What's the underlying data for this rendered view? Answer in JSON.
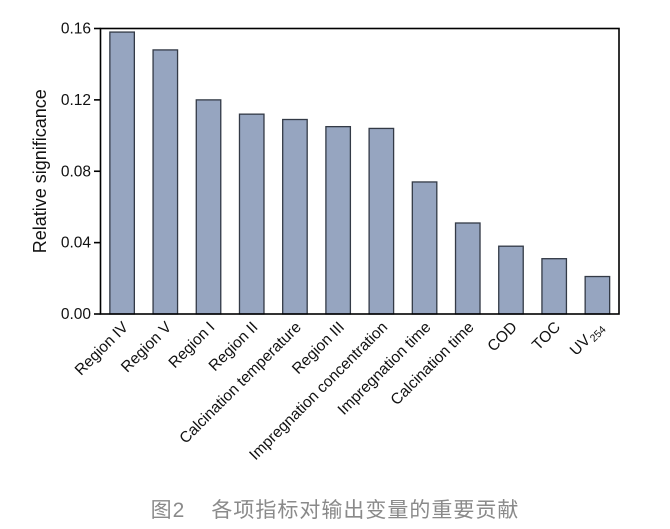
{
  "figure_caption": {
    "prefix": "图2",
    "text": "各项指标对输出变量的重要贡献",
    "color": "#8a8a8a"
  },
  "chart_data": {
    "type": "bar",
    "title": "",
    "xlabel": "",
    "ylabel": "Relative significance",
    "ylim": [
      0,
      0.16
    ],
    "yticks": [
      0,
      0.04,
      0.08,
      0.12,
      0.16
    ],
    "ytick_decimals": 2,
    "grid": false,
    "legend": null,
    "x_label_rotation_deg": -45,
    "categories": [
      "Region IV",
      "Region V",
      "Region I",
      "Region II",
      "Calcination temperature",
      "Region III",
      "Impregnation concentration",
      "Impregnation time",
      "Calcination time",
      "COD",
      "TOC",
      "UV_254"
    ],
    "values": [
      0.158,
      0.148,
      0.12,
      0.112,
      0.109,
      0.105,
      0.104,
      0.074,
      0.051,
      0.038,
      0.031,
      0.021
    ],
    "bar_fill_color": "#96a5c0",
    "bar_stroke_color": "#333a46",
    "axis_color": "#000000",
    "tick_label_color": "#111111"
  }
}
